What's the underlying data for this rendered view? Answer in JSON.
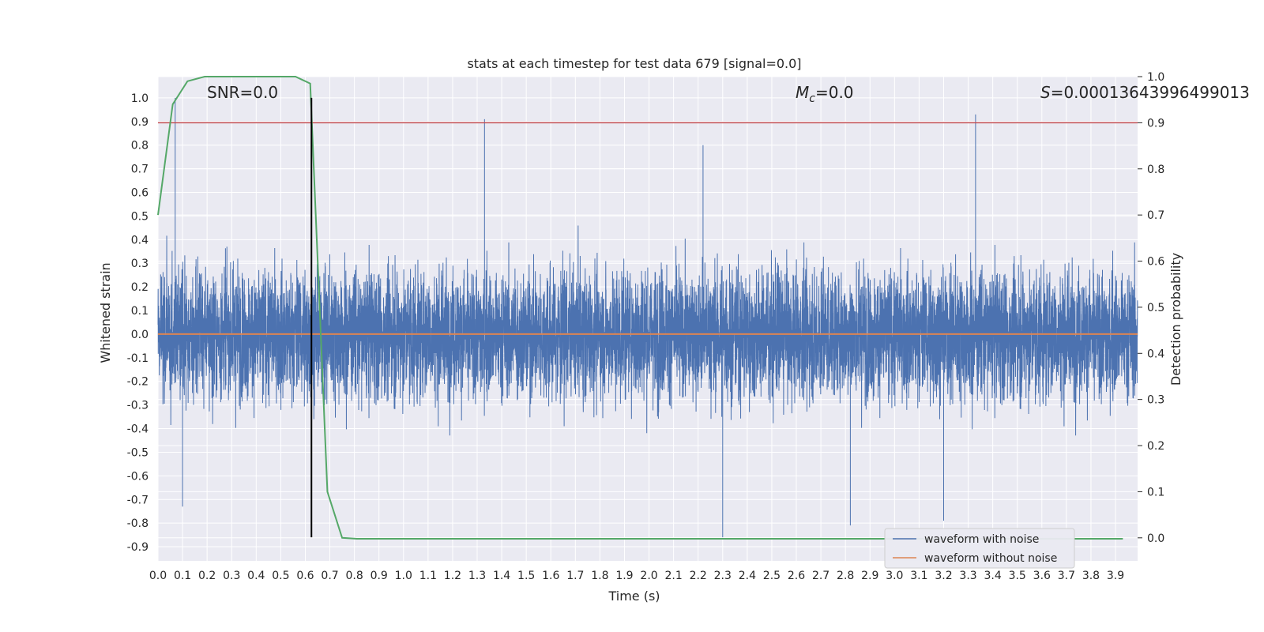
{
  "chart_data": {
    "type": "line",
    "title": "stats at each timestep for test data 679 [signal=0.0]",
    "xlabel": "Time (s)",
    "ylabel": "Whitened strain",
    "y2label": "Detection probability",
    "xlim": [
      0.0,
      3.99
    ],
    "ylim": [
      -0.96,
      1.09
    ],
    "y2lim": [
      -0.05,
      1.0
    ],
    "x_ticks": [
      0.0,
      0.1,
      0.2,
      0.3,
      0.4,
      0.5,
      0.6,
      0.7,
      0.8,
      0.9,
      1.0,
      1.1,
      1.2,
      1.3,
      1.4,
      1.5,
      1.6,
      1.7,
      1.8,
      1.9,
      2.0,
      2.1,
      2.2,
      2.3,
      2.4,
      2.5,
      2.6,
      2.7,
      2.8,
      2.9,
      3.0,
      3.1,
      3.2,
      3.3,
      3.4,
      3.5,
      3.6,
      3.7,
      3.8,
      3.9
    ],
    "y_ticks": [
      -0.9,
      -0.8,
      -0.7,
      -0.6,
      -0.5,
      -0.4,
      -0.3,
      -0.2,
      -0.1,
      0.0,
      0.1,
      0.2,
      0.3,
      0.4,
      0.5,
      0.6,
      0.7,
      0.8,
      0.9,
      1.0
    ],
    "y2_ticks": [
      0.0,
      0.1,
      0.2,
      0.3,
      0.4,
      0.5,
      0.6,
      0.7,
      0.8,
      0.9,
      1.0
    ],
    "grid": true,
    "legend_position": "lower-right",
    "annotations": {
      "snr": "SNR=0.0",
      "mc_symbol": "M",
      "mc_sub": "c",
      "mc_value": "=0.0",
      "s_symbol": "S",
      "s_value": "=0.00013643996499013"
    },
    "colors": {
      "noise": "#4c72b0",
      "clean": "#dd8452",
      "prob": "#55a868",
      "threshold": "#c44e52",
      "marker": "#000000",
      "background": "#eaeaf2",
      "grid": "#ffffff"
    },
    "series": [
      {
        "name": "waveform with noise",
        "axis": "left",
        "generator": "noise",
        "samples": 8192,
        "x_range": [
          0.0,
          3.99
        ],
        "amplitude_range": [
          -0.86,
          1.0
        ],
        "spikes": [
          {
            "x": 0.07,
            "y": 1.0
          },
          {
            "x": 1.33,
            "y": 0.91
          },
          {
            "x": 3.33,
            "y": 0.93
          },
          {
            "x": 2.22,
            "y": 0.8
          },
          {
            "x": 2.3,
            "y": -0.86
          },
          {
            "x": 0.1,
            "y": -0.73
          },
          {
            "x": 3.2,
            "y": -0.79
          },
          {
            "x": 2.82,
            "y": -0.81
          }
        ]
      },
      {
        "name": "waveform without noise",
        "axis": "left",
        "x": [
          0.0,
          3.99
        ],
        "y": [
          0.0,
          0.0
        ]
      },
      {
        "name": "detection probability",
        "axis": "right",
        "x": [
          0.0,
          0.06,
          0.12,
          0.19,
          0.25,
          0.31,
          0.37,
          0.44,
          0.5,
          0.56,
          0.62,
          0.69,
          0.75,
          0.81,
          0.87,
          1.0,
          2.0,
          3.0,
          3.93
        ],
        "y": [
          0.7,
          0.94,
          0.99,
          1.0,
          1.0,
          1.0,
          1.0,
          1.0,
          1.0,
          1.0,
          0.985,
          0.1,
          0.0,
          -0.002,
          -0.002,
          -0.002,
          -0.002,
          -0.002,
          -0.002
        ]
      }
    ],
    "threshold_y2": 0.9,
    "marker_x": 0.625,
    "marker_y_range": [
      -0.86,
      1.0
    ]
  }
}
